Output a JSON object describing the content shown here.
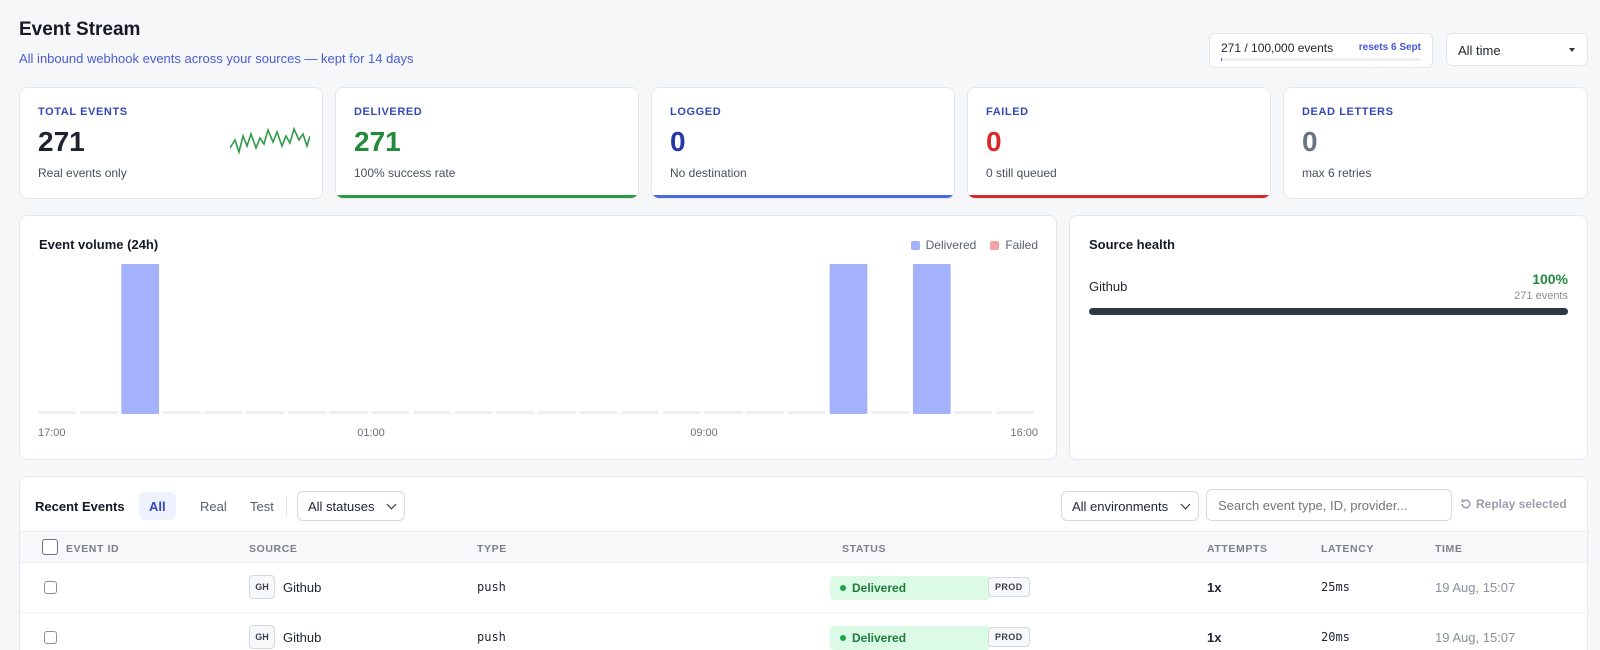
{
  "header": {
    "title": "Event Stream",
    "subtitle": "All inbound webhook events across your sources — kept for 14 days",
    "quota_text": "271 / 100,000 events",
    "quota_reset": "resets 6 Sept",
    "quota_used_fraction": 0.00271,
    "time_range": "All time"
  },
  "stats": [
    {
      "label": "TOTAL EVENTS",
      "value": "271",
      "sub": "Real events only",
      "color": "#151826",
      "accent": "",
      "sparkline": true
    },
    {
      "label": "DELIVERED",
      "value": "271",
      "sub": "100% success rate",
      "color": "#218a3b",
      "accent": "#2a9a48"
    },
    {
      "label": "LOGGED",
      "value": "0",
      "sub": "No destination",
      "color": "#2638a8",
      "accent": "#4a6be6"
    },
    {
      "label": "FAILED",
      "value": "0",
      "sub": "0 still queued",
      "color": "#d92a2a",
      "accent": "#d92a2a"
    },
    {
      "label": "DEAD LETTERS",
      "value": "0",
      "sub": "max 6 retries",
      "color": "#6b7385",
      "accent": ""
    }
  ],
  "volume": {
    "title": "Event volume (24h)",
    "legend": [
      {
        "name": "Delivered",
        "color": "#a3b2fa"
      },
      {
        "name": "Failed",
        "color": "#f4a3a3"
      }
    ]
  },
  "chart_data": {
    "type": "bar",
    "title": "Event volume (24h)",
    "series": [
      {
        "name": "Delivered",
        "values": [
          0,
          0,
          1,
          0,
          0,
          0,
          0,
          0,
          0,
          0,
          0,
          0,
          0,
          0,
          0,
          0,
          0,
          0,
          0,
          1,
          0,
          1,
          0,
          0
        ]
      },
      {
        "name": "Failed",
        "values": [
          0,
          0,
          0,
          0,
          0,
          0,
          0,
          0,
          0,
          0,
          0,
          0,
          0,
          0,
          0,
          0,
          0,
          0,
          0,
          0,
          0,
          0,
          0,
          0
        ]
      }
    ],
    "x_ticks": [
      "17:00",
      "01:00",
      "09:00",
      "16:00"
    ],
    "legend_position": "top-right",
    "grid": false
  },
  "source_health": {
    "title": "Source health",
    "sources": [
      {
        "name": "Github",
        "pct": "100%",
        "count": "271 events",
        "fraction": 1.0
      }
    ]
  },
  "recent": {
    "title": "Recent Events",
    "tabs": [
      "All",
      "Real",
      "Test"
    ],
    "active_tab": 0,
    "status_filter": "All statuses",
    "env_filter": "All environments",
    "search_placeholder": "Search event type, ID, provider...",
    "replay_label": "Replay selected",
    "columns": [
      "EVENT ID",
      "SOURCE",
      "TYPE",
      "STATUS",
      "ATTEMPTS",
      "LATENCY",
      "TIME"
    ],
    "rows": [
      {
        "badge": "GH",
        "source": "Github",
        "type": "push",
        "status": "Delivered",
        "env": "PROD",
        "attempts": "1x",
        "latency": "25ms",
        "time": "19 Aug, 15:07"
      },
      {
        "badge": "GH",
        "source": "Github",
        "type": "push",
        "status": "Delivered",
        "env": "PROD",
        "attempts": "1x",
        "latency": "20ms",
        "time": "19 Aug, 15:07"
      }
    ]
  }
}
